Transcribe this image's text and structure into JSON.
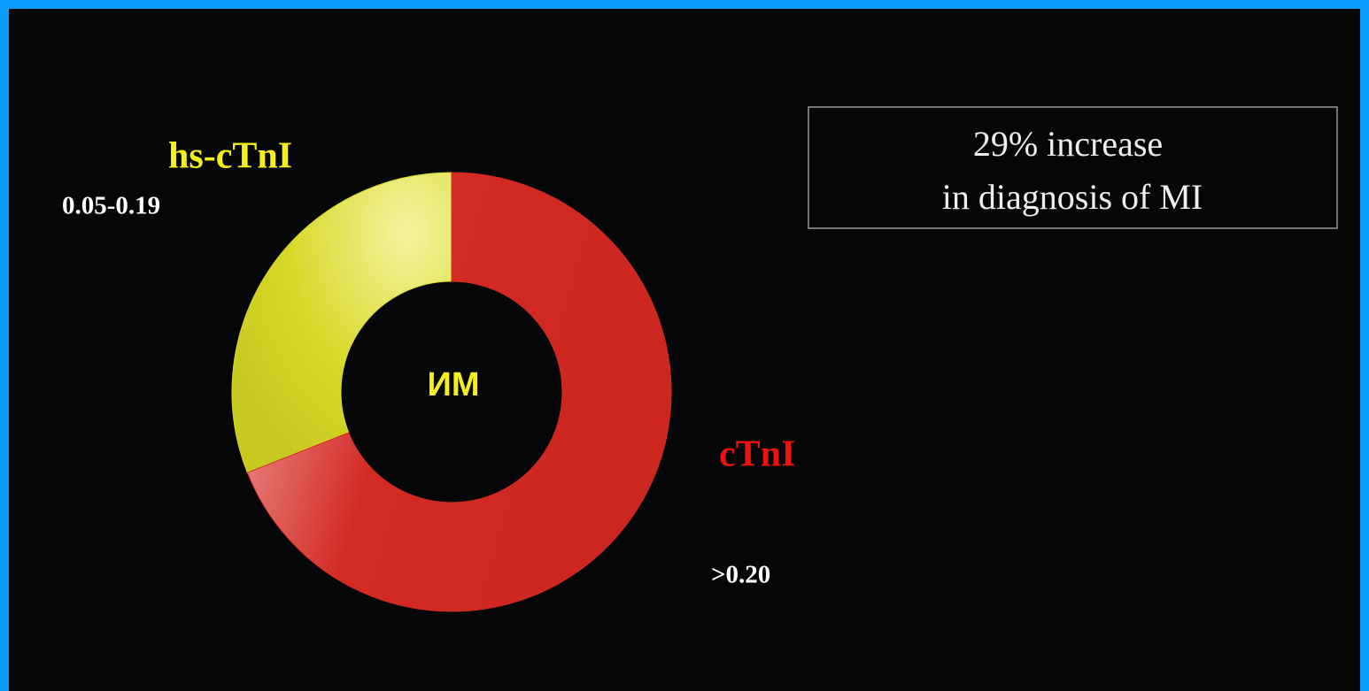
{
  "chart_data": {
    "type": "pie",
    "donut": true,
    "center_label": "ИМ",
    "categories": [
      "hs-cTnI",
      "cTnI"
    ],
    "ranges": [
      "0.05-0.19",
      ">0.20"
    ],
    "values": [
      31,
      69
    ],
    "colors": [
      "#d8d82a",
      "#d42a24"
    ],
    "annotation": [
      "29% increase",
      "in diagnosis of MI"
    ]
  }
}
